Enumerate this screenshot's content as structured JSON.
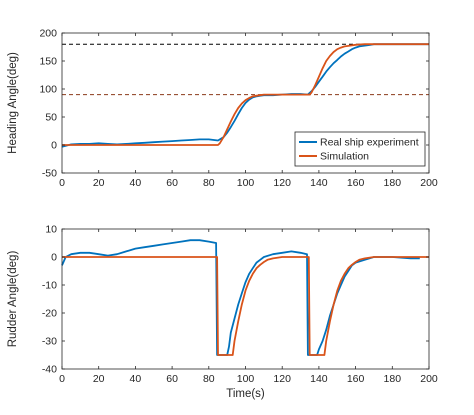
{
  "chart_data": [
    {
      "type": "line",
      "title": "",
      "xlabel": "",
      "ylabel": "Heading Angle(deg)",
      "xlim": [
        0,
        200
      ],
      "ylim": [
        -50,
        200
      ],
      "xticks": [
        0,
        20,
        40,
        60,
        80,
        100,
        120,
        140,
        160,
        180,
        200
      ],
      "yticks": [
        -50,
        0,
        50,
        100,
        150,
        200
      ],
      "grid": false,
      "legend": "bottom-right",
      "reference_lines": [
        {
          "y": 180,
          "style": "dashed",
          "color": "#000000"
        },
        {
          "y": 90,
          "style": "dashed",
          "color": "#8B3A1A"
        }
      ],
      "series": [
        {
          "name": "Real ship experiment",
          "color": "#0072BD",
          "x": [
            0,
            5,
            10,
            15,
            20,
            25,
            30,
            35,
            40,
            45,
            50,
            55,
            60,
            65,
            70,
            75,
            80,
            85,
            88,
            90,
            92,
            94,
            96,
            98,
            100,
            102,
            104,
            106,
            108,
            110,
            115,
            120,
            125,
            130,
            134,
            136,
            138,
            140,
            142,
            144,
            146,
            148,
            150,
            152,
            154,
            156,
            158,
            160,
            162,
            164,
            166,
            168,
            170,
            175,
            180,
            190,
            200
          ],
          "y": [
            -3,
            1,
            2,
            2,
            3,
            2,
            1,
            2,
            3,
            4,
            5,
            6,
            7,
            8,
            9,
            10,
            10,
            8,
            14,
            22,
            32,
            43,
            55,
            66,
            75,
            81,
            85,
            87,
            88,
            89,
            89,
            90,
            91,
            91,
            90,
            96,
            104,
            113,
            122,
            131,
            139,
            146,
            152,
            158,
            163,
            167,
            171,
            174,
            176,
            177,
            178,
            179,
            180,
            180,
            180,
            180,
            180
          ]
        },
        {
          "name": "Simulation",
          "color": "#D95319",
          "x": [
            0,
            10,
            20,
            30,
            40,
            50,
            60,
            70,
            80,
            85,
            86,
            88,
            90,
            92,
            94,
            96,
            98,
            100,
            102,
            104,
            106,
            108,
            110,
            115,
            120,
            125,
            130,
            135,
            136,
            138,
            140,
            142,
            144,
            146,
            148,
            150,
            152,
            154,
            156,
            158,
            160,
            165,
            170,
            180,
            190,
            200
          ],
          "y": [
            0,
            0,
            0,
            0,
            0,
            0,
            0,
            0,
            0,
            0,
            3,
            14,
            28,
            42,
            55,
            66,
            74,
            80,
            84,
            87,
            88,
            89,
            90,
            90,
            90,
            90,
            90,
            90,
            94,
            107,
            122,
            137,
            150,
            159,
            166,
            171,
            174,
            176,
            177,
            178,
            179,
            180,
            180,
            180,
            180,
            180
          ]
        }
      ]
    },
    {
      "type": "line",
      "title": "",
      "xlabel": "Time(s)",
      "ylabel": "Rudder Angle(deg)",
      "xlim": [
        0,
        200
      ],
      "ylim": [
        -40,
        10
      ],
      "xticks": [
        0,
        20,
        40,
        60,
        80,
        100,
        120,
        140,
        160,
        180,
        200
      ],
      "yticks": [
        -40,
        -30,
        -20,
        -10,
        0,
        10
      ],
      "grid": false,
      "legend": "none",
      "series": [
        {
          "name": "Real ship experiment",
          "color": "#0072BD",
          "x": [
            0,
            2,
            5,
            10,
            15,
            20,
            25,
            30,
            35,
            40,
            45,
            50,
            55,
            60,
            65,
            70,
            75,
            80,
            84,
            84.5,
            90,
            91,
            92,
            94,
            96,
            98,
            100,
            102,
            104,
            106,
            108,
            110,
            115,
            120,
            125,
            130,
            133.5,
            134,
            139,
            140,
            142,
            144,
            146,
            148,
            150,
            152,
            154,
            156,
            158,
            160,
            165,
            170,
            175,
            180,
            190,
            195
          ],
          "y": [
            -3,
            0,
            1,
            1.5,
            1.5,
            1,
            0.5,
            1,
            2,
            3,
            3.5,
            4,
            4.5,
            5,
            5.5,
            6,
            6,
            5.5,
            5,
            -35,
            -35,
            -32,
            -27,
            -22,
            -17,
            -13,
            -9,
            -6,
            -4,
            -2,
            -1,
            0,
            1,
            1.5,
            2,
            1.5,
            1,
            -35,
            -35,
            -33,
            -30,
            -26,
            -21,
            -17,
            -13,
            -10,
            -7,
            -5,
            -3,
            -2,
            -1,
            0,
            0,
            0,
            -0.5,
            -0.5
          ]
        },
        {
          "name": "Simulation",
          "color": "#D95319",
          "x": [
            0,
            20,
            40,
            60,
            80,
            84.5,
            85,
            93,
            94,
            96,
            98,
            100,
            102,
            104,
            106,
            108,
            110,
            112,
            115,
            120,
            125,
            130,
            134.5,
            135,
            143,
            144,
            146,
            148,
            150,
            152,
            154,
            156,
            158,
            160,
            162,
            165,
            170,
            180,
            190,
            200
          ],
          "y": [
            0,
            0,
            0,
            0,
            0,
            0,
            -35,
            -35,
            -30,
            -23,
            -17,
            -12,
            -8.5,
            -6,
            -4,
            -2.8,
            -1.8,
            -1,
            -0.5,
            0,
            0,
            0,
            0,
            -35,
            -35,
            -30,
            -23,
            -17,
            -12,
            -8.5,
            -6,
            -4,
            -2.8,
            -1.8,
            -1,
            -0.5,
            0,
            0,
            0,
            0
          ]
        }
      ]
    }
  ]
}
